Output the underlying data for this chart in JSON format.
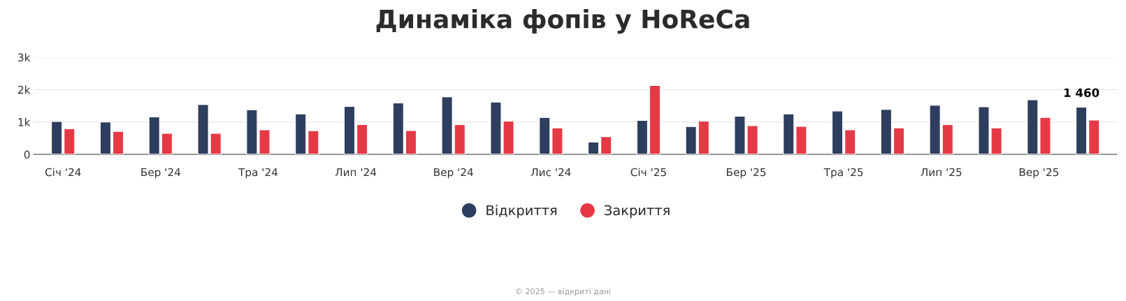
{
  "chart_data": {
    "type": "bar",
    "title": "Динаміка фопів у HoReCa",
    "categories": [
      "Січ '24",
      null,
      "Бер '24",
      null,
      "Тра '24",
      null,
      "Лип '24",
      null,
      "Вер '24",
      null,
      "Лис '24",
      null,
      "Січ '25",
      null,
      "Бер '25",
      null,
      "Тра '25",
      null,
      "Лип '25",
      null,
      "Вер '25",
      null
    ],
    "series": [
      {
        "name": "Відкриття",
        "color": "#2e3e5e",
        "values": [
          1020,
          1000,
          1160,
          1540,
          1380,
          1250,
          1480,
          1590,
          1780,
          1620,
          1140,
          380,
          1050,
          860,
          1180,
          1250,
          1340,
          1390,
          1520,
          1470,
          1690,
          1460
        ],
        "value_labels": [
          null,
          null,
          null,
          null,
          null,
          null,
          null,
          null,
          null,
          null,
          null,
          null,
          null,
          null,
          null,
          null,
          null,
          null,
          null,
          null,
          null,
          "1 460"
        ]
      },
      {
        "name": "Закриття",
        "color": "#e63946",
        "values": [
          790,
          710,
          650,
          650,
          760,
          730,
          920,
          740,
          920,
          1030,
          820,
          550,
          2130,
          1030,
          890,
          870,
          760,
          820,
          920,
          820,
          1140,
          1060
        ]
      }
    ],
    "ylim": [
      0,
      3000
    ],
    "yticks": [
      0,
      {
        "value": 1000,
        "label": "1k"
      },
      {
        "value": 2000,
        "label": "2k"
      },
      {
        "value": 3000,
        "label": "3k"
      }
    ],
    "grid": "y",
    "legend": "bottom",
    "annotations": [
      "© 2025 — відкриті дані"
    ]
  }
}
